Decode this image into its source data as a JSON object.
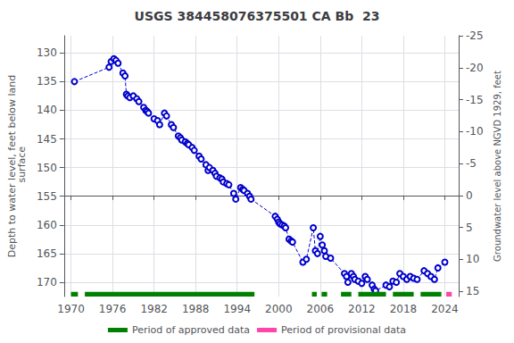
{
  "chart_data": {
    "type": "line",
    "title": "USGS 384458076375501 CA Bb  23",
    "ylabel": "Depth to water level, feet below land\n surface",
    "y2label": "Groundwater level above NGVD 1929, feet",
    "xlim": [
      1969,
      2026
    ],
    "xticks": [
      1970,
      1976,
      1982,
      1988,
      1994,
      2000,
      2006,
      2012,
      2018,
      2024
    ],
    "ylim": [
      172.5,
      127
    ],
    "yticks": [
      130,
      135,
      140,
      145,
      150,
      155,
      160,
      165,
      170
    ],
    "y2lim": [
      15.8,
      -25
    ],
    "y2ticks": [
      15,
      10,
      5,
      0,
      -5,
      -10,
      -15,
      -20,
      -25
    ],
    "grid": true,
    "legend": "bottom",
    "series": [
      {
        "type": "line",
        "color": "#0000cc",
        "marker": "open_circle",
        "line_style": "dashed",
        "x": [
          1970.5,
          1975.5,
          1975.8,
          1976.2,
          1976.5,
          1976.8,
          1977.5,
          1977.8,
          1978.0,
          1978.2,
          1978.5,
          1979.0,
          1979.5,
          1979.8,
          1980.5,
          1980.8,
          1981.0,
          1981.2,
          1982.0,
          1982.5,
          1982.8,
          1983.5,
          1983.8,
          1984.5,
          1984.8,
          1985.5,
          1985.8,
          1986.0,
          1986.5,
          1986.8,
          1987.0,
          1987.5,
          1987.8,
          1988.5,
          1988.8,
          1989.5,
          1989.8,
          1990.0,
          1990.5,
          1990.8,
          1991.0,
          1991.5,
          1991.8,
          1992.0,
          1992.5,
          1992.8,
          1993.5,
          1993.8,
          1994.5,
          1994.8,
          1995.0,
          1995.5,
          1995.8,
          1996.0,
          1999.5,
          1999.8,
          2000.0,
          2000.2,
          2000.5,
          2000.8,
          2001.0,
          2001.5,
          2001.8,
          2002.0,
          2003.5,
          2004.0,
          2005.0,
          2005.3,
          2005.6,
          2006.0,
          2006.3,
          2006.6,
          2006.8,
          2007.5,
          2009.5,
          2009.8,
          2010.0,
          2010.5,
          2010.8,
          2011.0,
          2011.5,
          2012.0,
          2012.5,
          2012.8,
          2013.5,
          2013.8,
          2014.0,
          2015.5,
          2016.0,
          2016.5,
          2017.0,
          2017.5,
          2018.0,
          2018.5,
          2019.0,
          2019.5,
          2020.0,
          2021.0,
          2021.5,
          2022.0,
          2022.5,
          2023.0,
          2024.0
        ],
        "values": [
          135.0,
          132.5,
          131.5,
          131.0,
          131.3,
          131.8,
          133.5,
          134.0,
          137.2,
          137.5,
          137.8,
          137.5,
          138.0,
          138.5,
          139.5,
          140.0,
          140.2,
          140.5,
          141.5,
          141.8,
          142.5,
          140.5,
          141.0,
          142.5,
          143.0,
          144.5,
          144.8,
          145.2,
          145.5,
          145.8,
          146.0,
          146.5,
          147.0,
          148.0,
          148.5,
          149.5,
          150.5,
          150.0,
          150.5,
          151.0,
          151.5,
          151.8,
          152.0,
          152.5,
          152.8,
          153.0,
          154.5,
          155.5,
          153.5,
          153.8,
          154.0,
          154.5,
          155.0,
          155.5,
          158.5,
          159.0,
          159.5,
          159.8,
          160.0,
          160.2,
          160.5,
          162.5,
          162.8,
          163.0,
          166.5,
          166.0,
          160.5,
          164.5,
          165.0,
          162.0,
          163.5,
          164.5,
          165.5,
          165.8,
          168.5,
          169.0,
          170.0,
          168.5,
          169.0,
          169.5,
          169.8,
          170.2,
          169.0,
          169.5,
          170.5,
          171.2,
          171.5,
          170.5,
          170.8,
          169.8,
          170.0,
          168.5,
          169.0,
          169.5,
          169.0,
          169.3,
          169.5,
          168.0,
          168.5,
          169.0,
          169.5,
          167.5,
          166.5
        ]
      },
      {
        "type": "segments",
        "name": "Period of approved data",
        "color": "#008000",
        "values": [
          [
            1970.0,
            1971.0
          ],
          [
            1972.0,
            1996.5
          ],
          [
            2004.8,
            2005.5
          ],
          [
            2006.2,
            2007.0
          ],
          [
            2009.0,
            2010.5
          ],
          [
            2011.5,
            2015.5
          ],
          [
            2016.5,
            2019.5
          ],
          [
            2020.5,
            2023.5
          ]
        ]
      },
      {
        "type": "segments",
        "name": "Period of provisional data",
        "color": "#ff44aa",
        "values": [
          [
            2024.2,
            2025.0
          ]
        ]
      }
    ]
  }
}
